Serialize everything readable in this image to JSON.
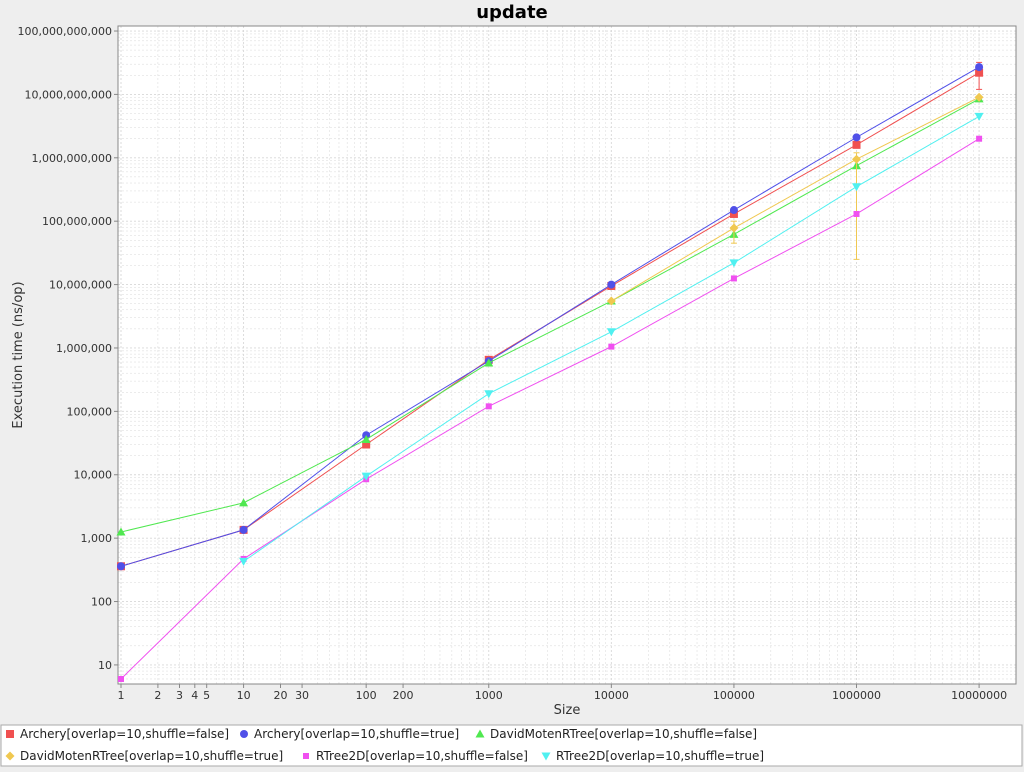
{
  "chart_data": {
    "type": "line",
    "title": "update",
    "xlabel": "Size",
    "ylabel": "Execution time (ns/op)",
    "x_scale": "log",
    "y_scale": "log",
    "xlim": [
      1,
      20000000
    ],
    "ylim": [
      5,
      120000000000
    ],
    "grid": true,
    "legend_position": "bottom",
    "x_ticks": [
      {
        "value": 1,
        "label": "1"
      },
      {
        "value": 2,
        "label": "2"
      },
      {
        "value": 3,
        "label": "3"
      },
      {
        "value": 4,
        "label": "4"
      },
      {
        "value": 5,
        "label": "5"
      },
      {
        "value": 10,
        "label": "10"
      },
      {
        "value": 20,
        "label": "20"
      },
      {
        "value": 30,
        "label": "30"
      },
      {
        "value": 100,
        "label": "100"
      },
      {
        "value": 200,
        "label": "200"
      },
      {
        "value": 1000,
        "label": "1000"
      },
      {
        "value": 10000,
        "label": "10000"
      },
      {
        "value": 100000,
        "label": "100000"
      },
      {
        "value": 1000000,
        "label": "1000000"
      },
      {
        "value": 10000000,
        "label": "10000000"
      }
    ],
    "y_ticks": [
      {
        "value": 10,
        "label": "10"
      },
      {
        "value": 100,
        "label": "100"
      },
      {
        "value": 1000,
        "label": "1,000"
      },
      {
        "value": 10000,
        "label": "10,000"
      },
      {
        "value": 100000,
        "label": "100,000"
      },
      {
        "value": 1000000,
        "label": "1,000,000"
      },
      {
        "value": 10000000,
        "label": "10,000,000"
      },
      {
        "value": 100000000,
        "label": "100,000,000"
      },
      {
        "value": 1000000000,
        "label": "1,000,000,000"
      },
      {
        "value": 10000000000,
        "label": "10,000,000,000"
      },
      {
        "value": 100000000000,
        "label": "100,000,000,000"
      }
    ],
    "x": [
      1,
      10,
      100,
      1000,
      10000,
      100000,
      1000000,
      10000000
    ],
    "series": [
      {
        "name": "Archery[overlap=10,shuffle=false]",
        "color": "#f05050",
        "marker": "square",
        "values": [
          360,
          1350,
          30000,
          650000,
          9500000,
          130000000,
          1600000000,
          22000000000
        ],
        "error_bars": [
          null,
          null,
          null,
          null,
          null,
          null,
          null,
          [
            12000000000,
            32000000000
          ]
        ]
      },
      {
        "name": "Archery[overlap=10,shuffle=true]",
        "color": "#5050e8",
        "marker": "circle",
        "values": [
          360,
          1350,
          42000,
          620000,
          10000000,
          150000000,
          2100000000,
          27000000000
        ],
        "error_bars": [
          null,
          null,
          null,
          null,
          null,
          null,
          null,
          null
        ]
      },
      {
        "name": "DavidMotenRTree[overlap=10,shuffle=false]",
        "color": "#50e850",
        "marker": "triangle-up",
        "values": [
          1250,
          3600,
          36000,
          580000,
          5500000,
          62000000,
          750000000,
          8500000000
        ],
        "error_bars": [
          null,
          null,
          null,
          null,
          null,
          null,
          null,
          null
        ]
      },
      {
        "name": "DavidMotenRTree[overlap=10,shuffle=true]",
        "color": "#f0c850",
        "marker": "diamond",
        "values": [
          null,
          null,
          null,
          null,
          5500000,
          78000000,
          950000000,
          9000000000
        ],
        "error_bars": [
          null,
          null,
          null,
          null,
          null,
          [
            45000000,
            100000000
          ],
          [
            25000000,
            1200000000
          ],
          null
        ]
      },
      {
        "name": "RTree2D[overlap=10,shuffle=false]",
        "color": "#f050f0",
        "marker": "square-small",
        "values": [
          6,
          470,
          8500,
          120000,
          1050000,
          12500000,
          130000000,
          2000000000
        ],
        "error_bars": [
          null,
          null,
          null,
          null,
          null,
          null,
          null,
          null
        ]
      },
      {
        "name": "RTree2D[overlap=10,shuffle=true]",
        "color": "#50f0f0",
        "marker": "triangle-down",
        "values": [
          null,
          430,
          9500,
          190000,
          1800000,
          22000000,
          350000000,
          4500000000
        ],
        "error_bars": [
          null,
          null,
          null,
          null,
          null,
          null,
          null,
          null
        ]
      }
    ]
  }
}
